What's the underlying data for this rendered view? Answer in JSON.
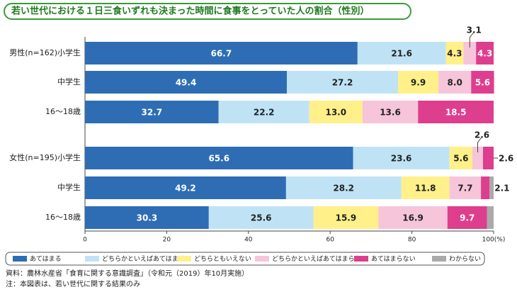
{
  "chart_data": {
    "type": "stacked-bar-horizontal",
    "title": "若い世代における１日三食いずれも決まった時間に食事をとっていた人の割合（性別）",
    "categories": [
      "男性(n=162)小学生",
      "中学生",
      "16～18歳",
      "女性(n=195)小学生",
      "中学生",
      "16～18歳"
    ],
    "series": [
      {
        "name": "あてはまる",
        "color": "#2e6db4",
        "values": [
          66.7,
          49.4,
          32.7,
          65.6,
          49.2,
          30.3
        ],
        "value_labels": [
          "66.7",
          "49.4",
          "32.7",
          "65.6",
          "49.2",
          "30.3"
        ]
      },
      {
        "name": "どちらかといえばあてはまる",
        "color": "#bfe3f5",
        "values": [
          21.6,
          27.2,
          22.2,
          23.6,
          28.2,
          25.6
        ],
        "value_labels": [
          "21.6",
          "27.2",
          "22.2",
          "23.6",
          "28.2",
          "25.6"
        ]
      },
      {
        "name": "どちらともいえない",
        "color": "#fff08a",
        "values": [
          4.3,
          9.9,
          13.0,
          5.6,
          11.8,
          15.9
        ],
        "value_labels": [
          "4.3",
          "9.9",
          "13.0",
          "5.6",
          "11.8",
          "15.9"
        ]
      },
      {
        "name": "どちらかといえばあてはまらない",
        "color": "#f6c5d9",
        "values": [
          3.1,
          8.0,
          13.6,
          2.6,
          7.7,
          16.9
        ],
        "value_labels": [
          "3.1",
          "8.0",
          "13.6",
          "2.6",
          "7.7",
          "16.9"
        ]
      },
      {
        "name": "あてはまらない",
        "color": "#de3e8e",
        "values": [
          4.3,
          5.6,
          18.5,
          2.6,
          2.1,
          9.7
        ],
        "value_labels": [
          "4.3",
          "5.6",
          "18.5",
          "2.6",
          "2.1",
          "9.7"
        ]
      },
      {
        "name": "わからない",
        "color": "#aaaaaa",
        "values": [
          null,
          null,
          null,
          null,
          1.0,
          1.6
        ],
        "value_labels": [
          null,
          null,
          null,
          null,
          null,
          null
        ]
      }
    ],
    "xlim": [
      0,
      100
    ],
    "xticks": [
      0,
      20,
      40,
      60,
      80,
      {
        "value": 100,
        "label": "100(%)"
      }
    ],
    "notes": [
      "資料：農林水産省「食育に関する意識調査」（令和元（2019）年10月実施）",
      "注：本図表は、若い世代に関する結果のみ"
    ]
  }
}
